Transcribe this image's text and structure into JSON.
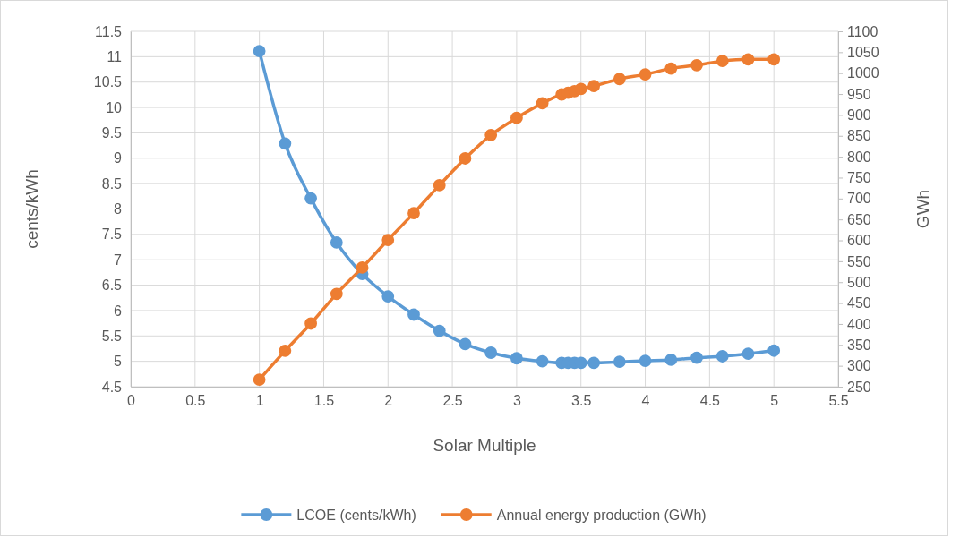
{
  "chart_data": {
    "type": "line",
    "xlabel": "Solar Multiple",
    "ylabel": "cents/kWh",
    "y2label": "GWh",
    "x": [
      1,
      1.2,
      1.4,
      1.6,
      1.8,
      2,
      2.2,
      2.4,
      2.6,
      2.8,
      3,
      3.2,
      3.35,
      3.4,
      3.45,
      3.5,
      3.6,
      3.8,
      4,
      4.2,
      4.4,
      4.6,
      4.8,
      5
    ],
    "series": [
      {
        "name": "LCOE (cents/kWh)",
        "color": "#5b9bd5",
        "values": [
          11.11,
          9.29,
          8.21,
          7.34,
          6.72,
          6.28,
          5.92,
          5.6,
          5.34,
          5.17,
          5.06,
          5.0,
          4.97,
          4.97,
          4.97,
          4.97,
          4.97,
          4.99,
          5.01,
          5.03,
          5.07,
          5.1,
          5.15,
          5.21
        ]
      },
      {
        "name": "Annual energy production (GWh)",
        "color": "#ed7d31",
        "axis": "y2",
        "values": [
          267,
          336,
          401,
          472,
          535,
          601,
          665,
          732,
          796,
          852,
          893,
          928,
          949,
          953,
          957,
          962,
          969,
          986,
          997,
          1011,
          1019,
          1029,
          1033,
          1033
        ]
      }
    ],
    "xlim": [
      0,
      5.5
    ],
    "xticks": [
      0,
      0.5,
      1,
      1.5,
      2,
      2.5,
      3,
      3.5,
      4,
      4.5,
      5,
      5.5
    ],
    "ylim": [
      4.5,
      11.5
    ],
    "yticks": [
      4.5,
      5,
      5.5,
      6,
      6.5,
      7,
      7.5,
      8,
      8.5,
      9,
      9.5,
      10,
      10.5,
      11,
      11.5
    ],
    "y2lim": [
      250,
      1100
    ],
    "y2ticks": [
      250,
      300,
      350,
      400,
      450,
      500,
      550,
      600,
      650,
      700,
      750,
      800,
      850,
      900,
      950,
      1000,
      1050,
      1100
    ],
    "grid": true,
    "legend": "bottom",
    "marker": "circle",
    "line_style": "solid"
  }
}
